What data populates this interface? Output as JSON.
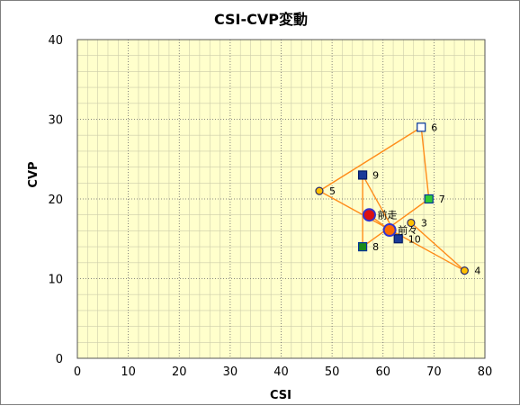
{
  "chart_data": {
    "type": "scatter",
    "title": "CSI-CVP変動",
    "xlabel": "CSI",
    "ylabel": "CVP",
    "xlim": [
      0,
      80
    ],
    "ylim": [
      0,
      40
    ],
    "xticks": [
      0,
      10,
      20,
      30,
      40,
      50,
      60,
      70,
      80
    ],
    "yticks": [
      0,
      10,
      20,
      30,
      40
    ],
    "grid": true,
    "colors": {
      "plot_background": "#ffffcc",
      "minor_grid": "#ccccaa",
      "major_grid": "#666666",
      "path_line": "#ff8c1a"
    },
    "path": [
      {
        "label": "3",
        "x": 65.5,
        "y": 17,
        "marker": "circle",
        "fill": "#ffc000",
        "stroke": "#2a2a6a",
        "size": "small"
      },
      {
        "label": "4",
        "x": 76,
        "y": 11,
        "marker": "circle",
        "fill": "#ffc000",
        "stroke": "#2a2a6a",
        "size": "small"
      },
      {
        "label": "5",
        "x": 47.5,
        "y": 21,
        "marker": "circle",
        "fill": "#ffc000",
        "stroke": "#2a2a6a",
        "size": "small"
      },
      {
        "label": "6",
        "x": 67.5,
        "y": 29,
        "marker": "square",
        "fill": "#ffffff",
        "stroke": "#003399",
        "size": "small"
      },
      {
        "label": "7",
        "x": 69,
        "y": 20,
        "marker": "square",
        "fill": "#33cc33",
        "stroke": "#003399",
        "size": "small"
      },
      {
        "label": "8",
        "x": 56,
        "y": 14,
        "marker": "square",
        "fill": "#1a8a1a",
        "stroke": "#003399",
        "size": "small"
      },
      {
        "label": "9",
        "x": 56,
        "y": 23,
        "marker": "square",
        "fill": "#1a3a99",
        "stroke": "#001a66",
        "size": "small"
      },
      {
        "label": "10",
        "x": 63,
        "y": 15,
        "marker": "square",
        "fill": "#1a3a99",
        "stroke": "#001a66",
        "size": "small"
      }
    ],
    "highlights": [
      {
        "label": "前走",
        "x": 57.3,
        "y": 18,
        "marker": "circle",
        "fill": "#dd1111",
        "stroke": "#3333cc",
        "size": "large"
      },
      {
        "label": "前々",
        "x": 61.3,
        "y": 16.1,
        "marker": "circle",
        "fill": "#ff6a00",
        "stroke": "#3333cc",
        "size": "large"
      }
    ]
  }
}
